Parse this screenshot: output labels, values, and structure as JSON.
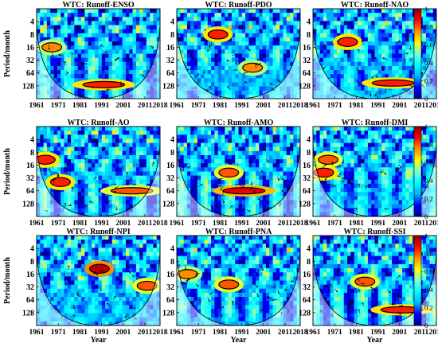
{
  "figure": {
    "x_axis_label": "Year",
    "y_axis_label": "Period/month",
    "x_ticks": [
      "1961",
      "1971",
      "1981",
      "1991",
      "2001",
      "2011",
      "2018"
    ],
    "y_ticks": [
      "4",
      "8",
      "16",
      "32",
      "64",
      "128"
    ],
    "colorbar_ticks": [
      "0",
      "0.2",
      "0.4",
      "0.6",
      "0.8",
      "1"
    ],
    "colormap": [
      "#00008b",
      "#0000ff",
      "#00b4ff",
      "#00ffff",
      "#7fffd4",
      "#ffff00",
      "#ff8c00",
      "#ff0000",
      "#8b0000"
    ]
  },
  "chart_data": [
    {
      "type": "heatmap",
      "title": "WTC: Runoff-ENSO",
      "xlim": [
        1961,
        2018
      ],
      "y_scale": "log2",
      "ylim": [
        2,
        256
      ],
      "zlim": [
        0,
        1
      ],
      "cone_of_influence": true,
      "significant_regions": [
        {
          "year_center": 1992,
          "period": 120,
          "coherence": 0.85
        },
        {
          "year_center": 1968,
          "period": 16,
          "coherence": 0.75
        }
      ]
    },
    {
      "type": "heatmap",
      "title": "WTC: Runoff-PDO",
      "xlim": [
        1961,
        2018
      ],
      "y_scale": "log2",
      "ylim": [
        2,
        256
      ],
      "zlim": [
        0,
        1
      ],
      "cone_of_influence": true,
      "significant_regions": [
        {
          "year_center": 1980,
          "period": 8,
          "coherence": 0.85
        },
        {
          "year_center": 1996,
          "period": 48,
          "coherence": 0.75
        }
      ]
    },
    {
      "type": "heatmap",
      "title": "WTC: Runoff-NAO",
      "xlim": [
        1961,
        2018
      ],
      "y_scale": "log2",
      "ylim": [
        2,
        256
      ],
      "zlim": [
        0,
        1
      ],
      "cone_of_influence": true,
      "significant_regions": [
        {
          "year_center": 1977,
          "period": 12,
          "coherence": 0.85
        },
        {
          "year_center": 1998,
          "period": 110,
          "coherence": 0.85
        }
      ]
    },
    {
      "type": "heatmap",
      "title": "WTC: Runoff-AO",
      "xlim": [
        1961,
        2018
      ],
      "y_scale": "log2",
      "ylim": [
        2,
        256
      ],
      "zlim": [
        0,
        1
      ],
      "cone_of_influence": true,
      "significant_regions": [
        {
          "year_center": 1965,
          "period": 12,
          "coherence": 0.85
        },
        {
          "year_center": 1972,
          "period": 40,
          "coherence": 0.85
        },
        {
          "year_center": 2005,
          "period": 64,
          "coherence": 0.8
        }
      ]
    },
    {
      "type": "heatmap",
      "title": "WTC: Runoff-AMO",
      "xlim": [
        1961,
        2018
      ],
      "y_scale": "log2",
      "ylim": [
        2,
        256
      ],
      "zlim": [
        0,
        1
      ],
      "cone_of_influence": true,
      "significant_regions": [
        {
          "year_center": 1992,
          "period": 64,
          "coherence": 0.9
        },
        {
          "year_center": 1985,
          "period": 24,
          "coherence": 0.8
        }
      ]
    },
    {
      "type": "heatmap",
      "title": "WTC: Runoff-DMI",
      "xlim": [
        1961,
        2018
      ],
      "y_scale": "log2",
      "ylim": [
        2,
        256
      ],
      "zlim": [
        0,
        1
      ],
      "cone_of_influence": true,
      "significant_regions": [
        {
          "year_center": 1966,
          "period": 24,
          "coherence": 0.85
        },
        {
          "year_center": 1968,
          "period": 12,
          "coherence": 0.8
        }
      ]
    },
    {
      "type": "heatmap",
      "title": "WTC: Runoff-NPI",
      "xlim": [
        1961,
        2018
      ],
      "y_scale": "log2",
      "ylim": [
        2,
        256
      ],
      "zlim": [
        0,
        1
      ],
      "cone_of_influence": true,
      "significant_regions": [
        {
          "year_center": 1990,
          "period": 12,
          "coherence": 0.95
        },
        {
          "year_center": 2012,
          "period": 30,
          "coherence": 0.8
        }
      ]
    },
    {
      "type": "heatmap",
      "title": "WTC: Runoff-PNA",
      "xlim": [
        1961,
        2018
      ],
      "y_scale": "log2",
      "ylim": [
        2,
        256
      ],
      "zlim": [
        0,
        1
      ],
      "cone_of_influence": true,
      "significant_regions": [
        {
          "year_center": 1985,
          "period": 28,
          "coherence": 0.8
        },
        {
          "year_center": 1966,
          "period": 16,
          "coherence": 0.75
        }
      ]
    },
    {
      "type": "heatmap",
      "title": "WTC: Runoff-SSI",
      "xlim": [
        1961,
        2018
      ],
      "y_scale": "log2",
      "ylim": [
        2,
        256
      ],
      "zlim": [
        0,
        1
      ],
      "cone_of_influence": true,
      "significant_regions": [
        {
          "year_center": 1985,
          "period": 24,
          "coherence": 0.8
        },
        {
          "year_center": 2002,
          "period": 110,
          "coherence": 0.85
        }
      ]
    }
  ]
}
